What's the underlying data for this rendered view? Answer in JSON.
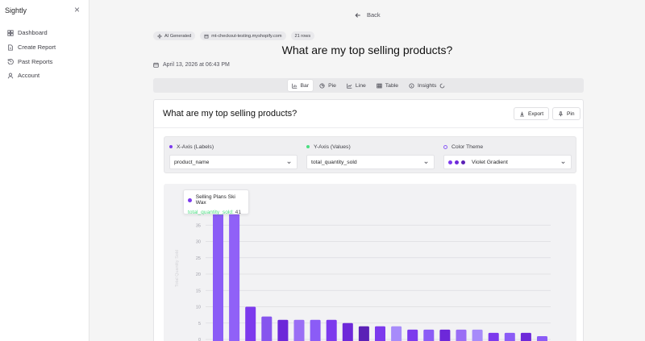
{
  "app": {
    "name": "Sightly",
    "close_glyph": "×"
  },
  "sidebar": {
    "items": [
      {
        "label": "Dashboard",
        "icon": "dashboard-icon"
      },
      {
        "label": "Create Report",
        "icon": "file-icon"
      },
      {
        "label": "Past Reports",
        "icon": "history-icon"
      },
      {
        "label": "Account",
        "icon": "user-icon"
      }
    ]
  },
  "header": {
    "back_label": "Back",
    "badges": [
      "AI Generated",
      "mt-checkout-testing.myshopify.com",
      "21 rows"
    ],
    "title": "What are my top selling products?",
    "date": "April 13, 2026 at 06:43 PM"
  },
  "tabs": [
    {
      "label": "Bar",
      "active": true,
      "icon": "bar-chart-icon"
    },
    {
      "label": "Pie",
      "active": false,
      "icon": "pie-chart-icon"
    },
    {
      "label": "Line",
      "active": false,
      "icon": "line-chart-icon"
    },
    {
      "label": "Table",
      "active": false,
      "icon": "table-icon"
    },
    {
      "label": "Insights",
      "active": false,
      "icon": "sparkle-icon"
    }
  ],
  "card": {
    "title": "What are my top selling products?",
    "export_label": "Export",
    "pin_label": "Pin"
  },
  "config": {
    "x_label": "X-Axis (Labels)",
    "x_value": "product_name",
    "y_label": "Y-Axis (Values)",
    "y_value": "total_quantity_sold",
    "theme_label": "Color Theme",
    "theme_value": "Violet Gradient",
    "x_dot_color": "#7c3aed",
    "y_dot_color": "#4ade80"
  },
  "tooltip": {
    "name": "Selling Plans Ski Wax",
    "series": "total_quantity_sold:",
    "value": "41"
  },
  "chart_data": {
    "type": "bar",
    "ylabel": "Total Quantity Sold",
    "ylim": [
      0,
      40
    ],
    "yticks": [
      0,
      5,
      10,
      15,
      20,
      25,
      30,
      35
    ],
    "values": [
      41,
      41,
      10,
      7,
      6,
      6,
      6,
      6,
      5,
      4,
      4,
      4,
      3,
      3,
      3,
      3,
      3,
      2,
      2,
      2,
      1
    ],
    "colors": [
      "#8b5cf6",
      "#9061f7",
      "#7c3aed",
      "#8655ee",
      "#6d28d9",
      "#9a6ef5",
      "#8b5cf6",
      "#7c3aed",
      "#6d28d9",
      "#5b21b6",
      "#7c3aed",
      "#a78bfa",
      "#7c3aed",
      "#8b5cf6",
      "#6d28d9",
      "#9a6ef5",
      "#a78bfa",
      "#7c3aed",
      "#8b5cf6",
      "#6d28d9",
      "#8b5cf6"
    ]
  }
}
